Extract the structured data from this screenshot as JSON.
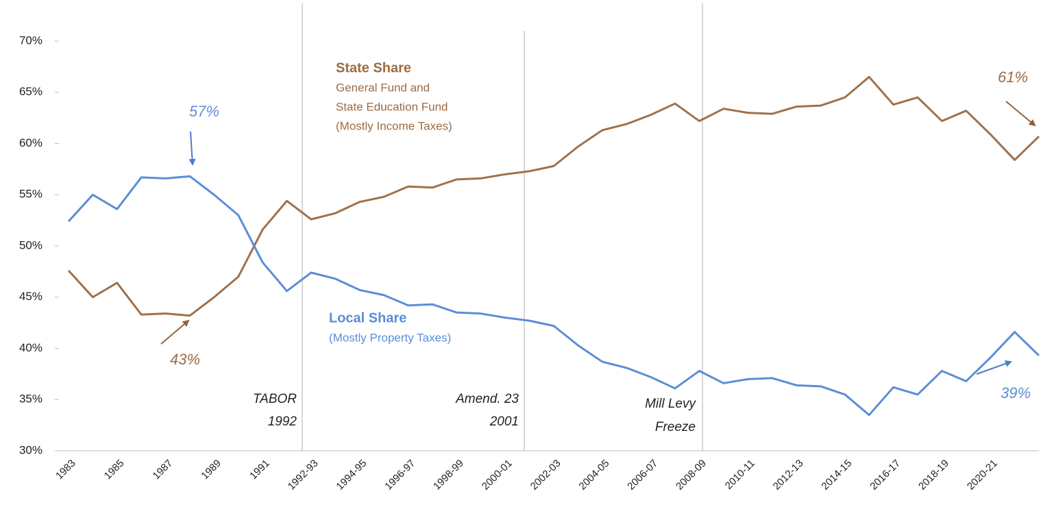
{
  "chart_data": {
    "type": "line",
    "categories": [
      "1983",
      null,
      "1985",
      null,
      "1987",
      null,
      "1989",
      null,
      "1991",
      null,
      "1992-93",
      null,
      "1994-95",
      null,
      "1996-97",
      null,
      "1998-99",
      null,
      "2000-01",
      null,
      "2002-03",
      null,
      "2004-05",
      null,
      "2006-07",
      null,
      "2008-09",
      null,
      "2010-11",
      null,
      "2012-13",
      null,
      "2014-15",
      null,
      "2016-17",
      null,
      "2018-19",
      null,
      "2020-21",
      null,
      null
    ],
    "series": [
      {
        "name": "State Share",
        "color": "#a0714a",
        "values": [
          47.6,
          45.0,
          46.4,
          43.3,
          43.4,
          43.2,
          45.0,
          47.0,
          51.6,
          54.4,
          52.6,
          53.2,
          54.3,
          54.8,
          55.8,
          55.7,
          56.5,
          56.6,
          57.0,
          57.3,
          57.8,
          59.7,
          61.3,
          61.9,
          62.8,
          63.9,
          62.2,
          63.4,
          63.0,
          62.9,
          63.6,
          63.7,
          64.5,
          66.5,
          63.8,
          64.5,
          62.2,
          63.2,
          60.9,
          58.4,
          60.7
        ]
      },
      {
        "name": "Local Share",
        "color": "#5b8dd6",
        "values": [
          52.4,
          55.0,
          53.6,
          56.7,
          56.6,
          56.8,
          55.0,
          53.0,
          48.4,
          45.6,
          47.4,
          46.8,
          45.7,
          45.2,
          44.2,
          44.3,
          43.5,
          43.4,
          43.0,
          42.7,
          42.2,
          40.3,
          38.7,
          38.1,
          37.2,
          36.1,
          37.8,
          36.6,
          37.0,
          37.1,
          36.4,
          36.3,
          35.5,
          33.5,
          36.2,
          35.5,
          37.8,
          36.8,
          39.1,
          41.6,
          39.3
        ]
      }
    ],
    "ylim": [
      30,
      70
    ],
    "yticks": [
      {
        "value": 30,
        "label": "30%"
      },
      {
        "value": 35,
        "label": "35%"
      },
      {
        "value": 40,
        "label": "40%"
      },
      {
        "value": 45,
        "label": "45%"
      },
      {
        "value": 50,
        "label": "50%"
      },
      {
        "value": 55,
        "label": "55%"
      },
      {
        "value": 60,
        "label": "60%"
      },
      {
        "value": 65,
        "label": "65%"
      },
      {
        "value": 70,
        "label": "70%"
      }
    ],
    "annotations": [
      "State Share",
      "General Fund and",
      "State Education Fund",
      "(Mostly Income Taxes)",
      "Local Share",
      "(Mostly Property Taxes)",
      "57%",
      "43%",
      "61%",
      "39%",
      "TABOR",
      "1992",
      "Amend. 23",
      "2001",
      "Mill Levy",
      "Freeze"
    ]
  }
}
